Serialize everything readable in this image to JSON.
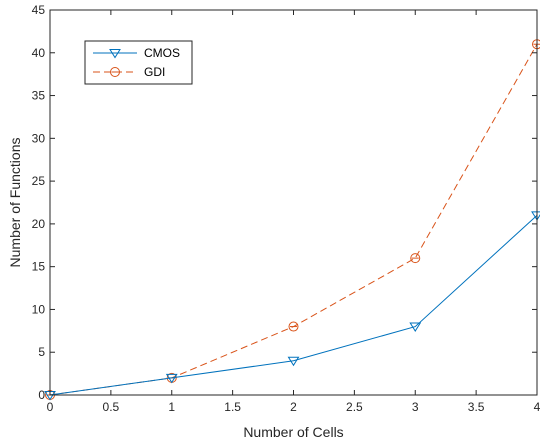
{
  "chart_data": {
    "type": "line",
    "title": "",
    "xlabel": "Number of Cells",
    "ylabel": "Number of Functions",
    "xlim": [
      0,
      4
    ],
    "ylim": [
      0,
      45
    ],
    "xticks": [
      "0",
      "0.5",
      "1",
      "1.5",
      "2",
      "2.5",
      "3",
      "3.5",
      "4"
    ],
    "yticks": [
      "0",
      "5",
      "10",
      "15",
      "20",
      "25",
      "30",
      "35",
      "40",
      "45"
    ],
    "grid": false,
    "legend_position": "top-left",
    "x": [
      0,
      1,
      2,
      3,
      4
    ],
    "series": [
      {
        "name": "CMOS",
        "values": [
          0,
          2,
          4,
          8,
          21
        ],
        "color": "#0072BD",
        "line_style": "solid",
        "marker": "triangle-down"
      },
      {
        "name": "GDI",
        "values": [
          0,
          2,
          8,
          16,
          41
        ],
        "color": "#D95319",
        "line_style": "dashed",
        "marker": "circle"
      }
    ]
  }
}
